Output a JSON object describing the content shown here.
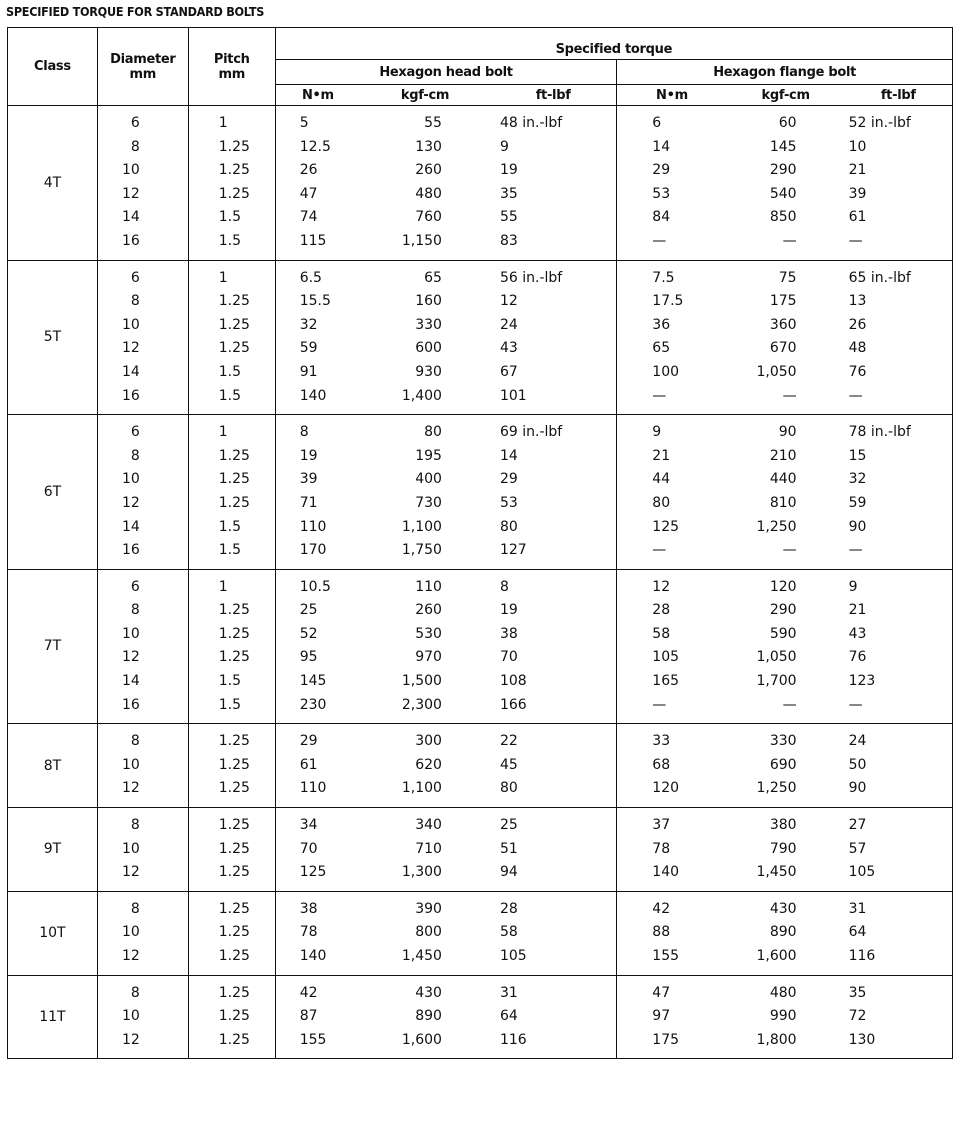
{
  "title": "SPECIFIED TORQUE FOR STANDARD BOLTS",
  "headers": {
    "class": "Class",
    "diameter": "Diameter",
    "diameter_unit": "mm",
    "pitch": "Pitch",
    "pitch_unit": "mm",
    "specified_torque": "Specified torque",
    "hex_head": "Hexagon head bolt",
    "hex_flange": "Hexagon flange bolt",
    "units": [
      "N•m",
      "kgf-cm",
      "ft-lbf",
      "N•m",
      "kgf-cm",
      "ft-lbf"
    ]
  },
  "groups": [
    {
      "class": "4T",
      "rows": [
        [
          "6",
          "1",
          "5",
          "55",
          "48 in.-lbf",
          "6",
          "60",
          "52 in.-lbf"
        ],
        [
          "8",
          "1.25",
          "12.5",
          "130",
          "9",
          "14",
          "145",
          "10"
        ],
        [
          "10",
          "1.25",
          "26",
          "260",
          "19",
          "29",
          "290",
          "21"
        ],
        [
          "12",
          "1.25",
          "47",
          "480",
          "35",
          "53",
          "540",
          "39"
        ],
        [
          "14",
          "1.5",
          "74",
          "760",
          "55",
          "84",
          "850",
          "61"
        ],
        [
          "16",
          "1.5",
          "115",
          "1,150",
          "83",
          "—",
          "—",
          "—"
        ]
      ]
    },
    {
      "class": "5T",
      "rows": [
        [
          "6",
          "1",
          "6.5",
          "65",
          "56 in.-lbf",
          "7.5",
          "75",
          "65 in.-lbf"
        ],
        [
          "8",
          "1.25",
          "15.5",
          "160",
          "12",
          "17.5",
          "175",
          "13"
        ],
        [
          "10",
          "1.25",
          "32",
          "330",
          "24",
          "36",
          "360",
          "26"
        ],
        [
          "12",
          "1.25",
          "59",
          "600",
          "43",
          "65",
          "670",
          "48"
        ],
        [
          "14",
          "1.5",
          "91",
          "930",
          "67",
          "100",
          "1,050",
          "76"
        ],
        [
          "16",
          "1.5",
          "140",
          "1,400",
          "101",
          "—",
          "—",
          "—"
        ]
      ]
    },
    {
      "class": "6T",
      "rows": [
        [
          "6",
          "1",
          "8",
          "80",
          "69 in.-lbf",
          "9",
          "90",
          "78 in.-lbf"
        ],
        [
          "8",
          "1.25",
          "19",
          "195",
          "14",
          "21",
          "210",
          "15"
        ],
        [
          "10",
          "1.25",
          "39",
          "400",
          "29",
          "44",
          "440",
          "32"
        ],
        [
          "12",
          "1.25",
          "71",
          "730",
          "53",
          "80",
          "810",
          "59"
        ],
        [
          "14",
          "1.5",
          "110",
          "1,100",
          "80",
          "125",
          "1,250",
          "90"
        ],
        [
          "16",
          "1.5",
          "170",
          "1,750",
          "127",
          "—",
          "—",
          "—"
        ]
      ]
    },
    {
      "class": "7T",
      "rows": [
        [
          "6",
          "1",
          "10.5",
          "110",
          "8",
          "12",
          "120",
          "9"
        ],
        [
          "8",
          "1.25",
          "25",
          "260",
          "19",
          "28",
          "290",
          "21"
        ],
        [
          "10",
          "1.25",
          "52",
          "530",
          "38",
          "58",
          "590",
          "43"
        ],
        [
          "12",
          "1.25",
          "95",
          "970",
          "70",
          "105",
          "1,050",
          "76"
        ],
        [
          "14",
          "1.5",
          "145",
          "1,500",
          "108",
          "165",
          "1,700",
          "123"
        ],
        [
          "16",
          "1.5",
          "230",
          "2,300",
          "166",
          "—",
          "—",
          "—"
        ]
      ]
    },
    {
      "class": "8T",
      "rows": [
        [
          "8",
          "1.25",
          "29",
          "300",
          "22",
          "33",
          "330",
          "24"
        ],
        [
          "10",
          "1.25",
          "61",
          "620",
          "45",
          "68",
          "690",
          "50"
        ],
        [
          "12",
          "1.25",
          "110",
          "1,100",
          "80",
          "120",
          "1,250",
          "90"
        ]
      ]
    },
    {
      "class": "9T",
      "rows": [
        [
          "8",
          "1.25",
          "34",
          "340",
          "25",
          "37",
          "380",
          "27"
        ],
        [
          "10",
          "1.25",
          "70",
          "710",
          "51",
          "78",
          "790",
          "57"
        ],
        [
          "12",
          "1.25",
          "125",
          "1,300",
          "94",
          "140",
          "1,450",
          "105"
        ]
      ]
    },
    {
      "class": "10T",
      "rows": [
        [
          "8",
          "1.25",
          "38",
          "390",
          "28",
          "42",
          "430",
          "31"
        ],
        [
          "10",
          "1.25",
          "78",
          "800",
          "58",
          "88",
          "890",
          "64"
        ],
        [
          "12",
          "1.25",
          "140",
          "1,450",
          "105",
          "155",
          "1,600",
          "116"
        ]
      ]
    },
    {
      "class": "11T",
      "rows": [
        [
          "8",
          "1.25",
          "42",
          "430",
          "31",
          "47",
          "480",
          "35"
        ],
        [
          "10",
          "1.25",
          "87",
          "890",
          "64",
          "97",
          "990",
          "72"
        ],
        [
          "12",
          "1.25",
          "155",
          "1,600",
          "116",
          "175",
          "1,800",
          "130"
        ]
      ]
    }
  ]
}
